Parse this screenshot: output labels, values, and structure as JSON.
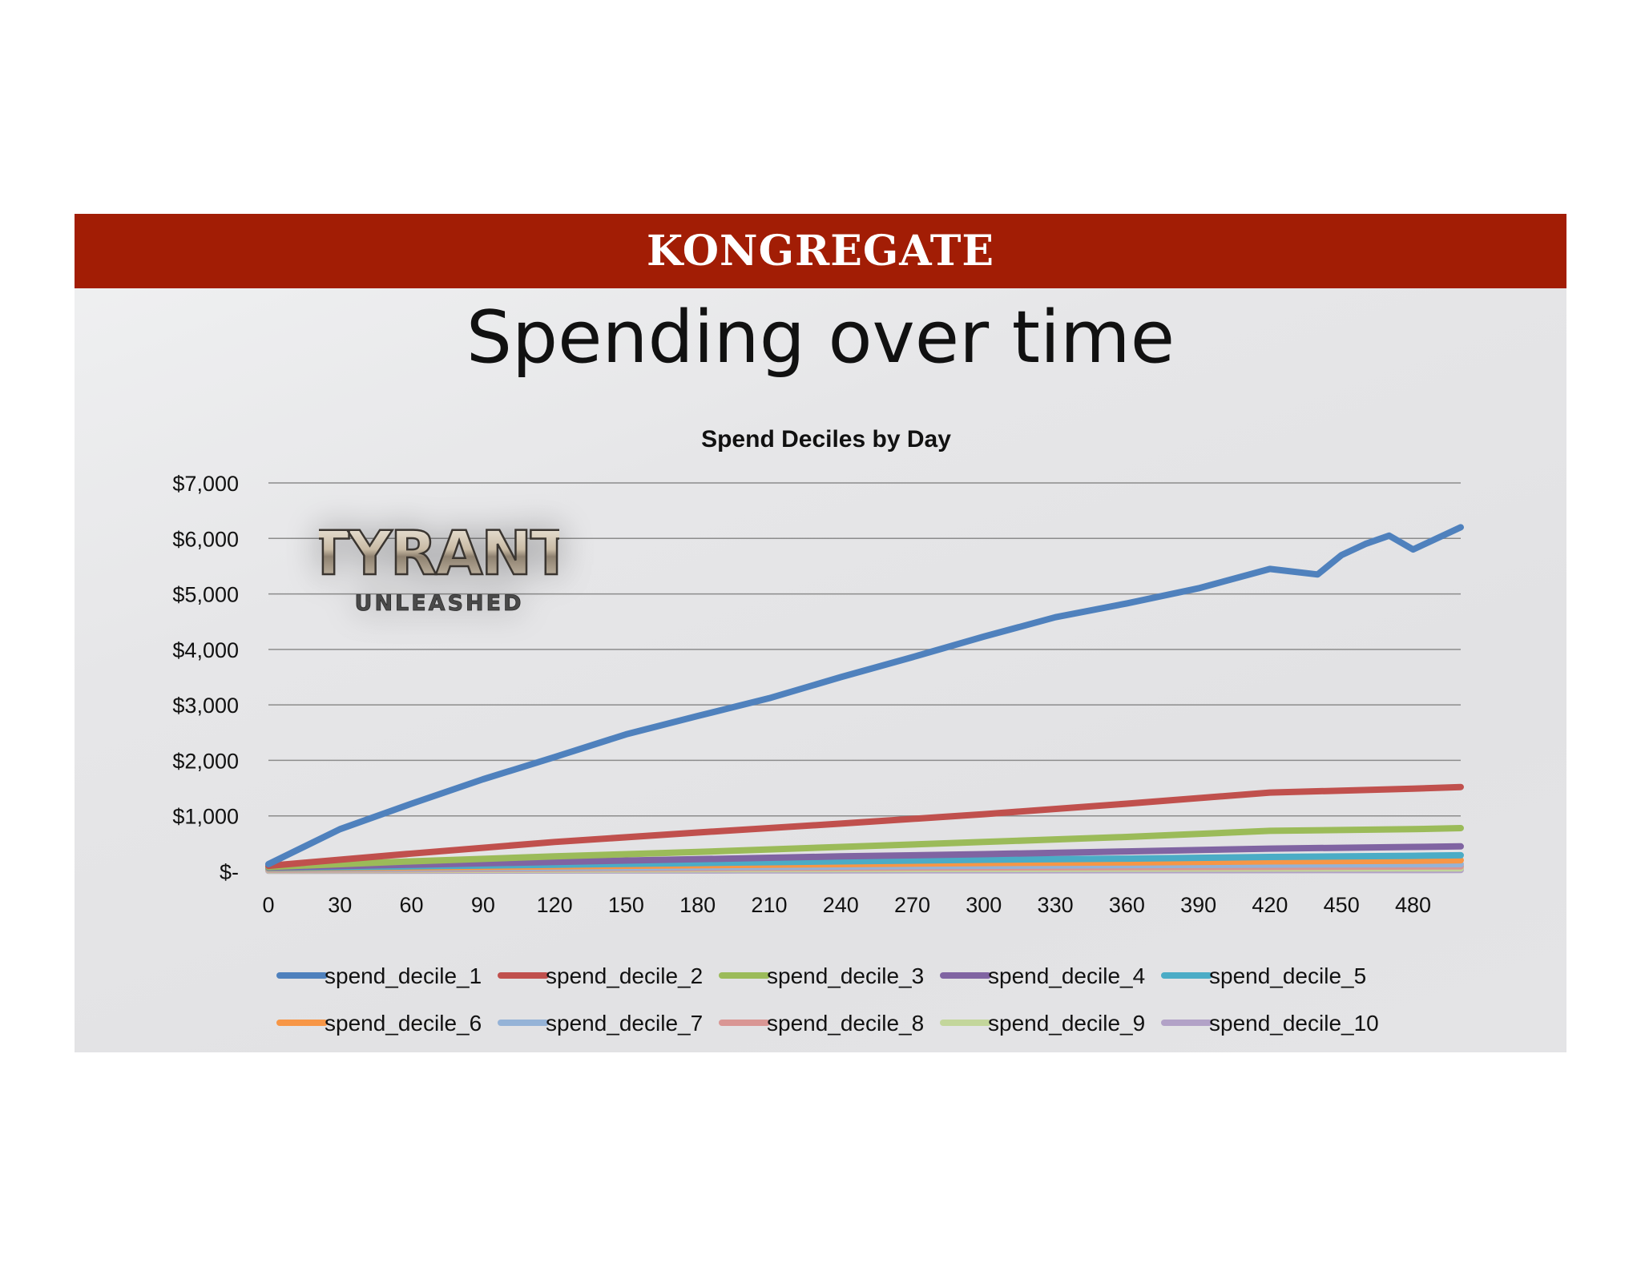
{
  "brand": {
    "name": "KONGREGATE"
  },
  "slide": {
    "title": "Spending over time"
  },
  "logo": {
    "line1": "TYRANT",
    "line2": "UNLEASHED"
  },
  "chart_data": {
    "type": "line",
    "title": "Spend Deciles by Day",
    "xlabel": "",
    "ylabel": "",
    "xlim": [
      0,
      500
    ],
    "ylim": [
      0,
      7000
    ],
    "x_ticks": [
      0,
      30,
      60,
      90,
      120,
      150,
      180,
      210,
      240,
      270,
      300,
      330,
      360,
      390,
      420,
      450,
      480
    ],
    "y_ticks": [
      0,
      1000,
      2000,
      3000,
      4000,
      5000,
      6000,
      7000
    ],
    "y_tick_labels": [
      "$-",
      "$1,000",
      "$2,000",
      "$3,000",
      "$4,000",
      "$5,000",
      "$6,000",
      "$7,000"
    ],
    "grid": "horizontal",
    "legend_position": "bottom",
    "series": [
      {
        "name": "spend_decile_1",
        "color": "#4f81bd",
        "x": [
          0,
          30,
          60,
          90,
          120,
          150,
          180,
          210,
          240,
          270,
          300,
          330,
          360,
          390,
          420,
          440,
          450,
          460,
          470,
          480,
          490,
          500
        ],
        "values": [
          130,
          760,
          1220,
          1660,
          2060,
          2470,
          2800,
          3120,
          3500,
          3860,
          4230,
          4580,
          4830,
          5100,
          5450,
          5350,
          5700,
          5900,
          6050,
          5800,
          6000,
          6200
        ]
      },
      {
        "name": "spend_decile_2",
        "color": "#c0504d",
        "x": [
          0,
          60,
          120,
          180,
          240,
          300,
          360,
          420,
          480,
          500
        ],
        "values": [
          100,
          320,
          530,
          700,
          860,
          1030,
          1220,
          1420,
          1490,
          1520
        ]
      },
      {
        "name": "spend_decile_3",
        "color": "#9bbb59",
        "x": [
          0,
          60,
          120,
          180,
          240,
          300,
          360,
          420,
          480,
          500
        ],
        "values": [
          80,
          180,
          270,
          350,
          440,
          530,
          620,
          730,
          760,
          780
        ]
      },
      {
        "name": "spend_decile_4",
        "color": "#8064a2",
        "x": [
          0,
          60,
          120,
          180,
          240,
          300,
          360,
          420,
          480,
          500
        ],
        "values": [
          70,
          120,
          170,
          220,
          270,
          310,
          360,
          410,
          440,
          450
        ]
      },
      {
        "name": "spend_decile_5",
        "color": "#4bacc6",
        "x": [
          0,
          60,
          120,
          180,
          240,
          300,
          360,
          420,
          480,
          500
        ],
        "values": [
          60,
          90,
          120,
          150,
          180,
          210,
          230,
          260,
          280,
          290
        ]
      },
      {
        "name": "spend_decile_6",
        "color": "#f79646",
        "x": [
          0,
          60,
          120,
          180,
          240,
          300,
          360,
          420,
          480,
          500
        ],
        "values": [
          50,
          70,
          90,
          110,
          130,
          150,
          160,
          180,
          190,
          200
        ]
      },
      {
        "name": "spend_decile_7",
        "color": "#95b3d7",
        "x": [
          0,
          100,
          200,
          300,
          400,
          500
        ],
        "values": [
          40,
          60,
          80,
          100,
          120,
          130
        ]
      },
      {
        "name": "spend_decile_8",
        "color": "#d99694",
        "x": [
          0,
          100,
          200,
          300,
          400,
          500
        ],
        "values": [
          30,
          45,
          60,
          70,
          80,
          90
        ]
      },
      {
        "name": "spend_decile_9",
        "color": "#c3d69b",
        "x": [
          0,
          100,
          200,
          300,
          400,
          500
        ],
        "values": [
          20,
          30,
          40,
          45,
          50,
          55
        ]
      },
      {
        "name": "spend_decile_10",
        "color": "#b2a2c7",
        "x": [
          0,
          100,
          200,
          300,
          400,
          500
        ],
        "values": [
          10,
          15,
          18,
          20,
          22,
          25
        ]
      }
    ]
  }
}
